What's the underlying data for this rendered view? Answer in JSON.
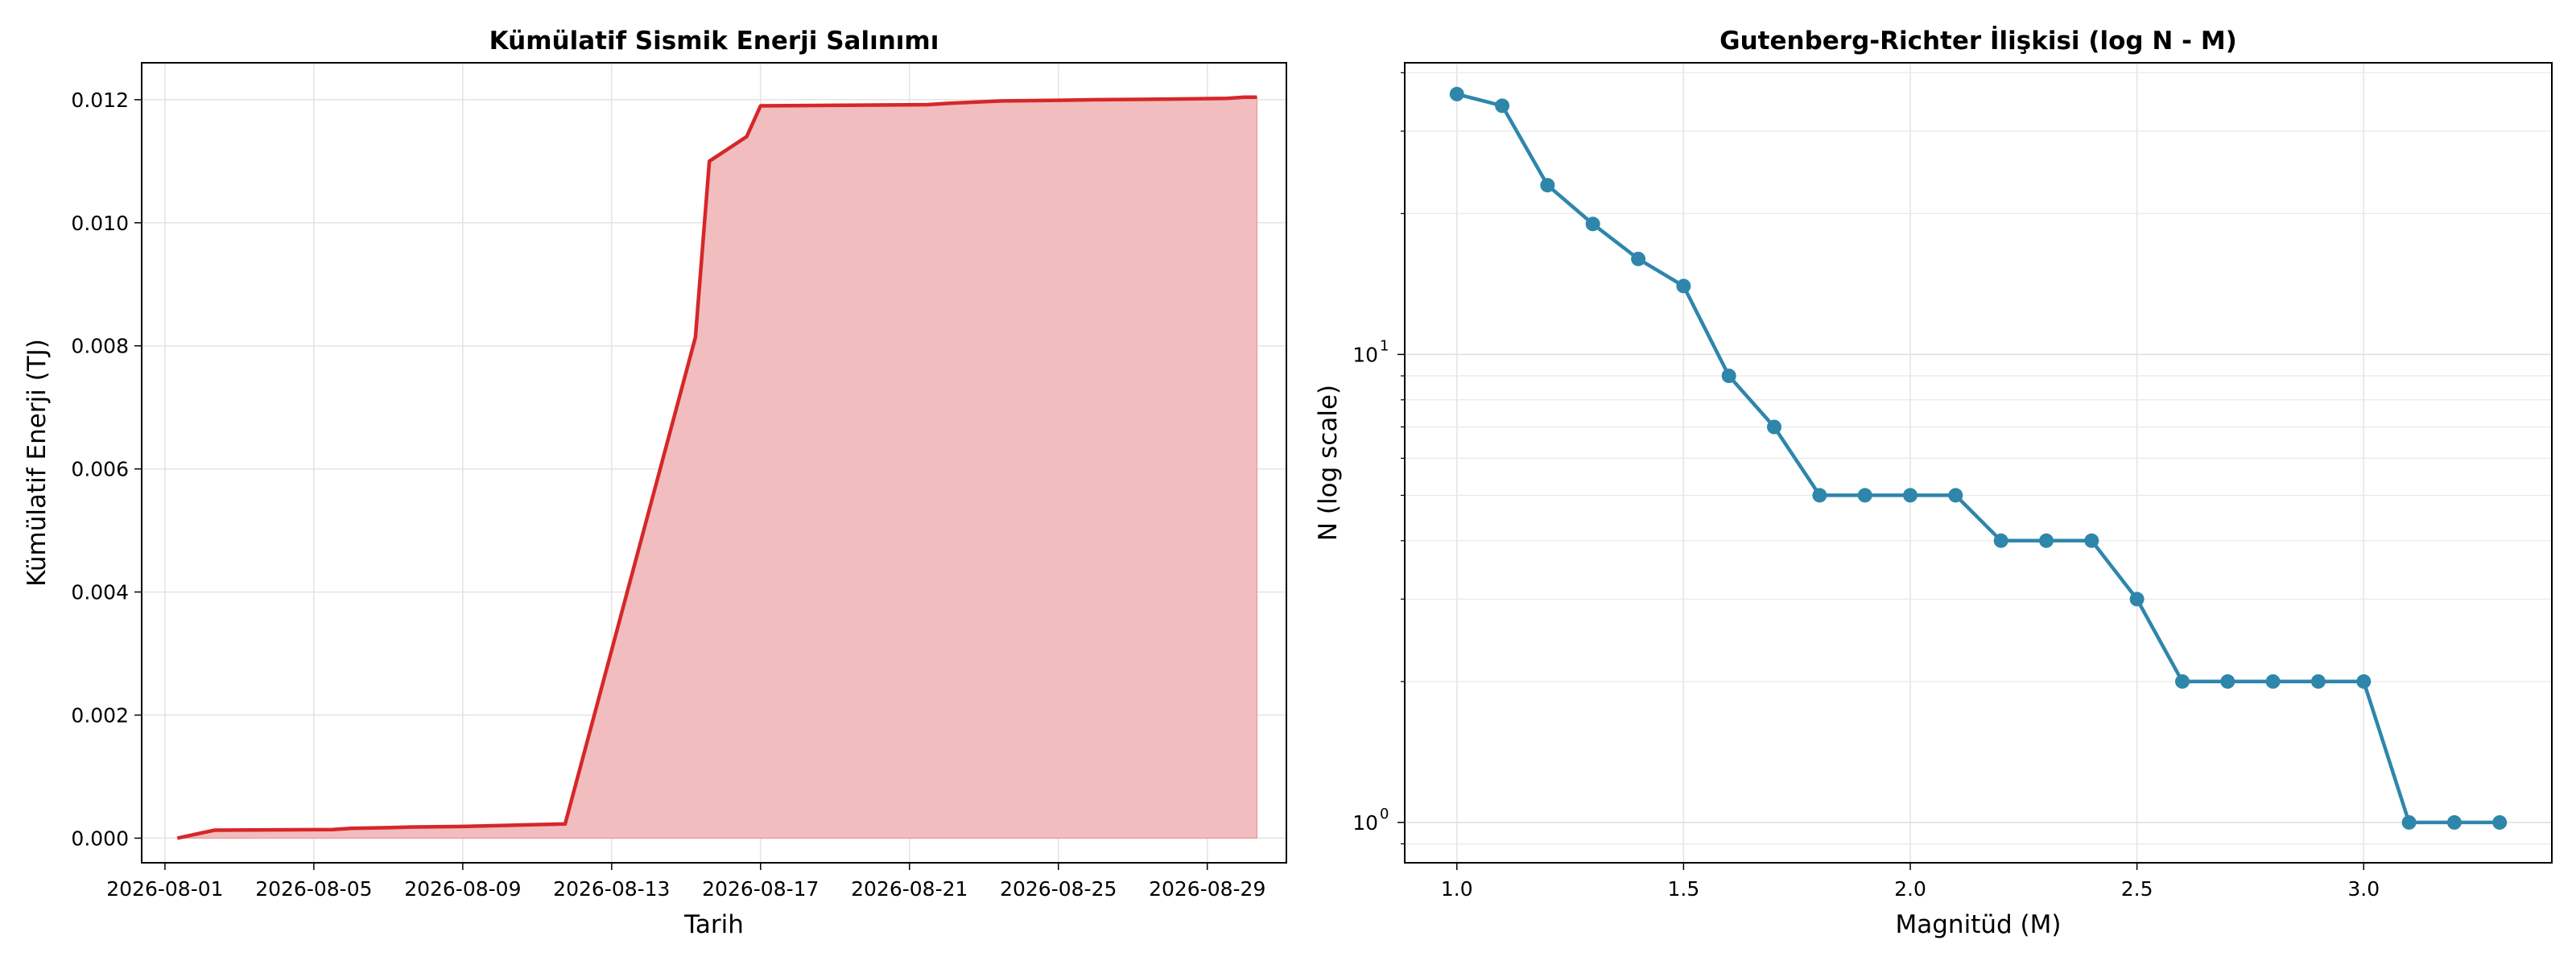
{
  "chart_data": [
    {
      "type": "area",
      "title": "Kümülatif Sismik Enerji Salınımı",
      "xlabel": "Tarih",
      "ylabel": "Kümülatif Enerji (TJ)",
      "x_tick_labels": [
        "2026-08-01",
        "2026-08-05",
        "2026-08-09",
        "2026-08-13",
        "2026-08-17",
        "2026-08-21",
        "2026-08-25",
        "2026-08-29"
      ],
      "y_tick_labels": [
        "0.000",
        "0.002",
        "0.004",
        "0.006",
        "0.008",
        "0.010",
        "0.012"
      ],
      "ylim": [
        -0.0004,
        0.0126
      ],
      "xlim": [
        "2026-07-31T09:00",
        "2026-08-31T03:00"
      ],
      "grid": true,
      "colors": {
        "line": "#d62728",
        "fill": "#f1bdbe"
      },
      "series": [
        {
          "x": [
            "2026-08-01T08:00",
            "2026-08-02T08:00",
            "2026-08-05T12:00",
            "2026-08-06T00:00",
            "2026-08-07T00:00",
            "2026-08-07T12:00",
            "2026-08-09T00:00",
            "2026-08-11T18:00",
            "2026-08-15T06:00",
            "2026-08-15T15:00",
            "2026-08-16T15:00",
            "2026-08-17T00:00",
            "2026-08-21T12:00",
            "2026-08-22T00:00",
            "2026-08-22T18:00",
            "2026-08-23T12:00",
            "2026-08-25T00:00",
            "2026-08-26T00:00",
            "2026-08-28T00:00",
            "2026-08-29T12:00",
            "2026-08-30T00:00",
            "2026-08-30T08:00"
          ],
          "values": [
            0.0,
            0.00013,
            0.00014,
            0.00016,
            0.00017,
            0.00018,
            0.00019,
            0.00023,
            0.00814,
            0.011,
            0.0114,
            0.0119,
            0.01192,
            0.01194,
            0.01196,
            0.01198,
            0.01199,
            0.012,
            0.01201,
            0.01202,
            0.01204,
            0.01204
          ]
        }
      ]
    },
    {
      "type": "line",
      "title": "Gutenberg-Richter İlişkisi (log N - M)",
      "xlabel": "Magnitüd (M)",
      "ylabel": "N (log scale)",
      "x_scale": "linear",
      "y_scale": "log",
      "x_tick_labels": [
        "1.0",
        "1.5",
        "2.0",
        "2.5",
        "3.0"
      ],
      "y_tick_labels": [
        {
          "base": "10",
          "exp": "0"
        },
        {
          "base": "10",
          "exp": "1"
        }
      ],
      "xlim": [
        0.885,
        3.415
      ],
      "ylim": [
        0.82,
        42
      ],
      "grid": true,
      "colors": {
        "line": "#2e86ab"
      },
      "series": [
        {
          "x": [
            1.0,
            1.1,
            1.2,
            1.3,
            1.4,
            1.5,
            1.6,
            1.7,
            1.8,
            1.9,
            2.0,
            2.1,
            2.2,
            2.3,
            2.4,
            2.5,
            2.6,
            2.7,
            2.8,
            2.9,
            3.0,
            3.1,
            3.2,
            3.3
          ],
          "values": [
            36,
            34,
            23,
            19,
            16,
            14,
            9,
            7,
            5,
            5,
            5,
            5,
            4,
            4,
            4,
            3,
            2,
            2,
            2,
            2,
            2,
            1,
            1,
            1
          ]
        }
      ]
    }
  ]
}
